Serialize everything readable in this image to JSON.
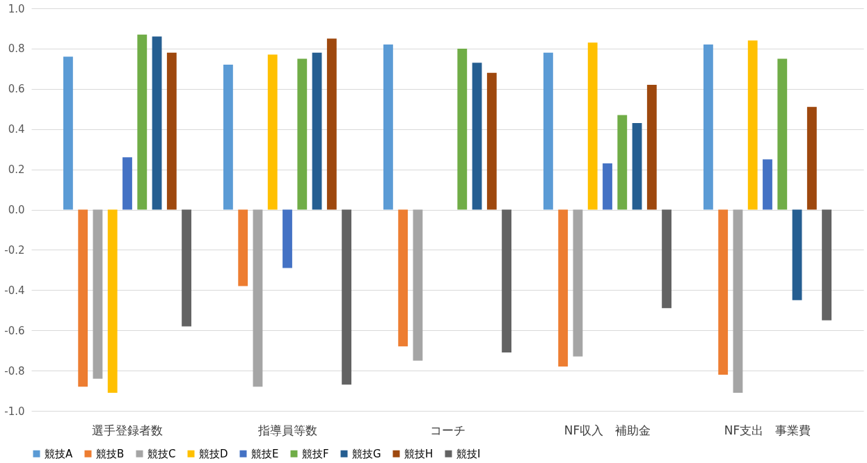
{
  "chart_data": {
    "type": "bar",
    "categories": [
      "選手登録者数",
      "指導員等数",
      "コーチ",
      "NF収入　補助金",
      "NF支出　事業費"
    ],
    "series": [
      {
        "name": "競技A",
        "color": "#5b9bd5",
        "values": [
          0.76,
          0.72,
          0.82,
          0.78,
          0.82
        ]
      },
      {
        "name": "競技B",
        "color": "#ed7d31",
        "values": [
          -0.88,
          -0.38,
          -0.68,
          -0.78,
          -0.82
        ]
      },
      {
        "name": "競技C",
        "color": "#a5a5a5",
        "values": [
          -0.84,
          -0.88,
          -0.75,
          -0.73,
          -0.91
        ]
      },
      {
        "name": "競技D",
        "color": "#ffc000",
        "values": [
          -0.91,
          0.77,
          null,
          0.83,
          0.84
        ]
      },
      {
        "name": "競技E",
        "color": "#4472c4",
        "values": [
          0.26,
          -0.29,
          null,
          0.23,
          0.25
        ]
      },
      {
        "name": "競技F",
        "color": "#70ad47",
        "values": [
          0.87,
          0.75,
          0.8,
          0.47,
          0.75
        ]
      },
      {
        "name": "競技G",
        "color": "#255e91",
        "values": [
          0.86,
          0.78,
          0.73,
          0.43,
          -0.45
        ]
      },
      {
        "name": "競技H",
        "color": "#9e480e",
        "values": [
          0.78,
          0.85,
          0.68,
          0.62,
          0.51
        ]
      },
      {
        "name": "競技I",
        "color": "#636363",
        "values": [
          -0.58,
          -0.87,
          -0.71,
          -0.49,
          -0.55
        ]
      }
    ],
    "ylim": [
      -1,
      1
    ],
    "yticks": [
      {
        "value": -1,
        "label": "-1.0"
      },
      {
        "value": -0.8,
        "label": "-0.8"
      },
      {
        "value": -0.6,
        "label": "-0.6"
      },
      {
        "value": -0.4,
        "label": "-0.4"
      },
      {
        "value": -0.2,
        "label": "-0.2"
      },
      {
        "value": 0,
        "label": "0.0"
      },
      {
        "value": 0.2,
        "label": "0.2"
      },
      {
        "value": 0.4,
        "label": "0.4"
      },
      {
        "value": 0.6,
        "label": "0.6"
      },
      {
        "value": 0.8,
        "label": "0.8"
      },
      {
        "value": 1,
        "label": "1.0"
      }
    ],
    "grid": "y",
    "legend": "bottom"
  }
}
